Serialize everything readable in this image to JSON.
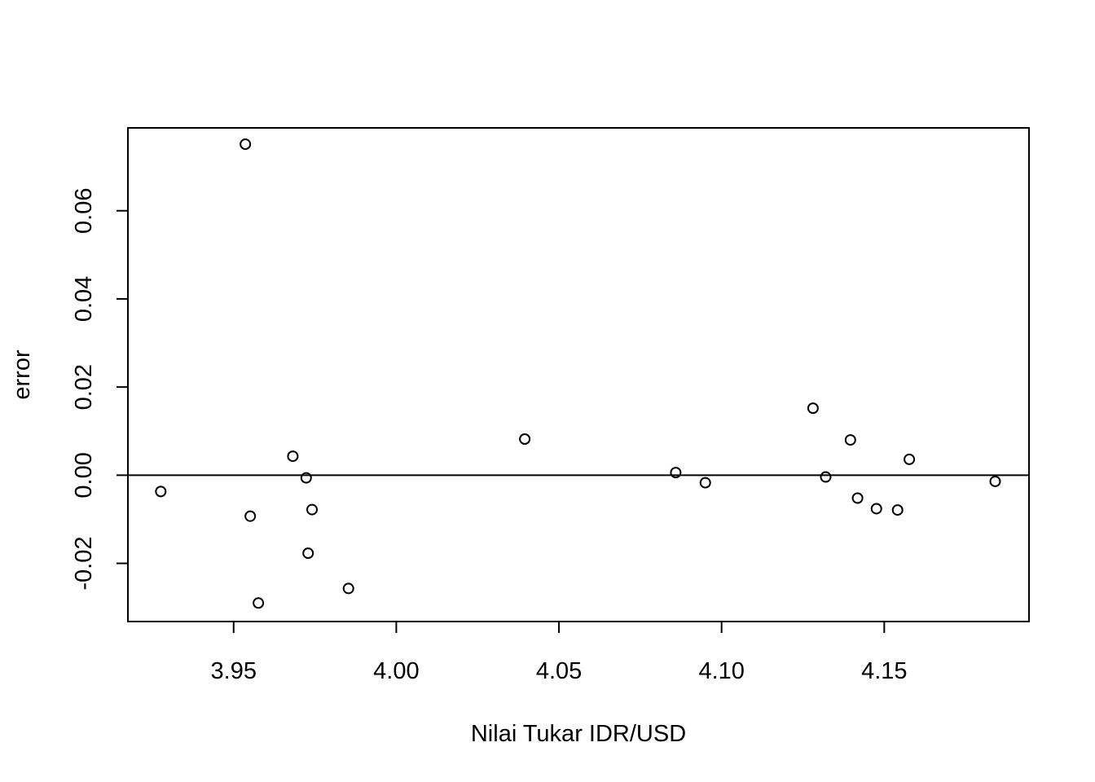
{
  "chart_data": {
    "type": "scatter",
    "title": "",
    "xlabel": "Nilai Tukar IDR/USD",
    "ylabel": "error",
    "xlim": [
      3.9175,
      4.1945
    ],
    "ylim": [
      -0.0332,
      0.0788
    ],
    "x_ticks": [
      3.95,
      4.0,
      4.05,
      4.1,
      4.15
    ],
    "x_tick_labels": [
      "3.95",
      "4.00",
      "4.05",
      "4.10",
      "4.15"
    ],
    "y_ticks": [
      -0.02,
      0.0,
      0.02,
      0.04,
      0.06
    ],
    "y_tick_labels": [
      "-0.02",
      "0.00",
      "0.02",
      "0.04",
      "0.06"
    ],
    "reference_line": {
      "y": 0.0
    },
    "grid": false,
    "legend": "none",
    "colors": {
      "points": "#000000",
      "axes": "#000000",
      "background": "#ffffff"
    },
    "points": [
      {
        "x": 3.9276,
        "y": -0.0037
      },
      {
        "x": 3.9536,
        "y": 0.0751
      },
      {
        "x": 3.9551,
        "y": -0.0093
      },
      {
        "x": 3.9576,
        "y": -0.029
      },
      {
        "x": 3.9682,
        "y": 0.0043
      },
      {
        "x": 3.9723,
        "y": -0.0006
      },
      {
        "x": 3.9729,
        "y": -0.0177
      },
      {
        "x": 3.9741,
        "y": -0.0078
      },
      {
        "x": 3.9853,
        "y": -0.0257
      },
      {
        "x": 4.0395,
        "y": 0.0082
      },
      {
        "x": 4.0859,
        "y": 0.0006
      },
      {
        "x": 4.095,
        "y": -0.0017
      },
      {
        "x": 4.1281,
        "y": 0.0152
      },
      {
        "x": 4.132,
        "y": -0.0004
      },
      {
        "x": 4.1396,
        "y": 0.008
      },
      {
        "x": 4.1418,
        "y": -0.0052
      },
      {
        "x": 4.1476,
        "y": -0.0076
      },
      {
        "x": 4.1541,
        "y": -0.0079
      },
      {
        "x": 4.1577,
        "y": 0.0036
      },
      {
        "x": 4.1841,
        "y": -0.0014
      }
    ]
  }
}
